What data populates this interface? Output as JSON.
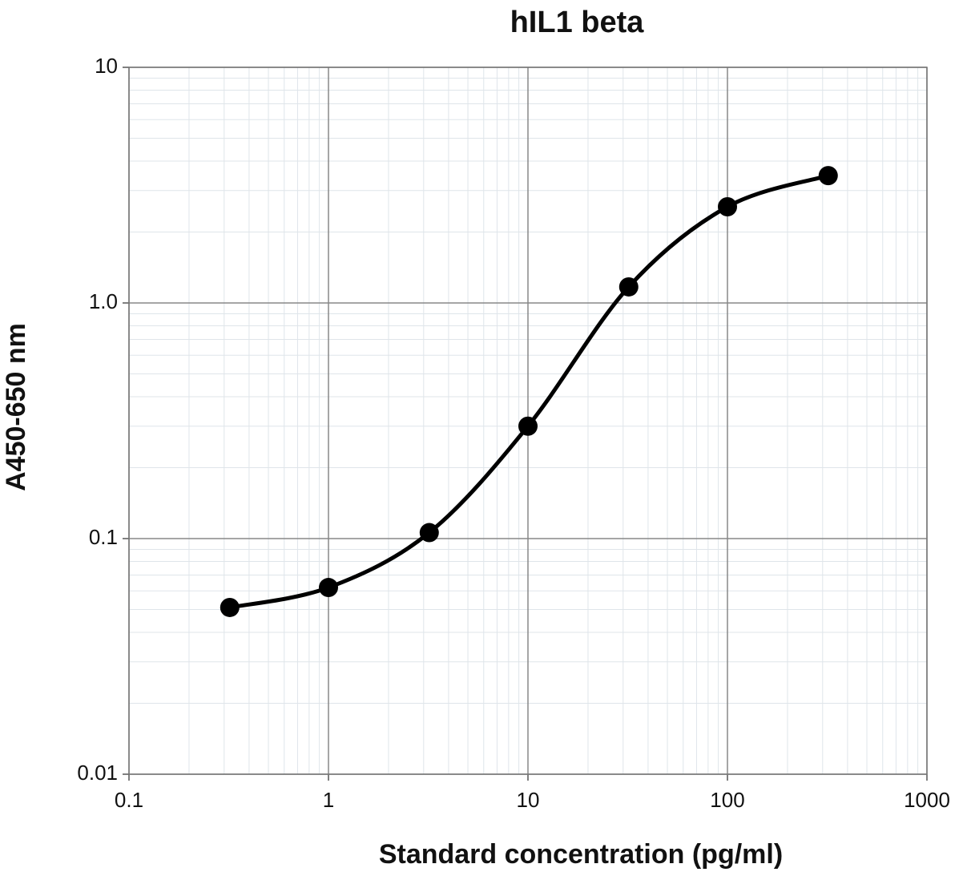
{
  "chart_data": {
    "type": "line",
    "title": "hIL1 beta",
    "x_label": "Standard concentration (pg/ml)",
    "y_label": "A450-650 nm",
    "x": [
      0.32,
      1,
      3.2,
      10,
      32,
      100,
      320
    ],
    "series": [
      {
        "color": "#000000",
        "values": [
          0.051,
          0.062,
          0.106,
          0.3,
          1.17,
          2.56,
          3.47
        ]
      }
    ],
    "xlim": [
      0.1,
      1000
    ],
    "ylim": [
      0.01,
      10
    ],
    "xlog": true,
    "ylog": true,
    "xticks": [
      0.1,
      1,
      10,
      100,
      1000
    ],
    "yticks": [
      0.01,
      0.1,
      {
        "value": 1,
        "label": "1.0"
      },
      10
    ],
    "grid": true,
    "markers": true,
    "smooth": true
  }
}
